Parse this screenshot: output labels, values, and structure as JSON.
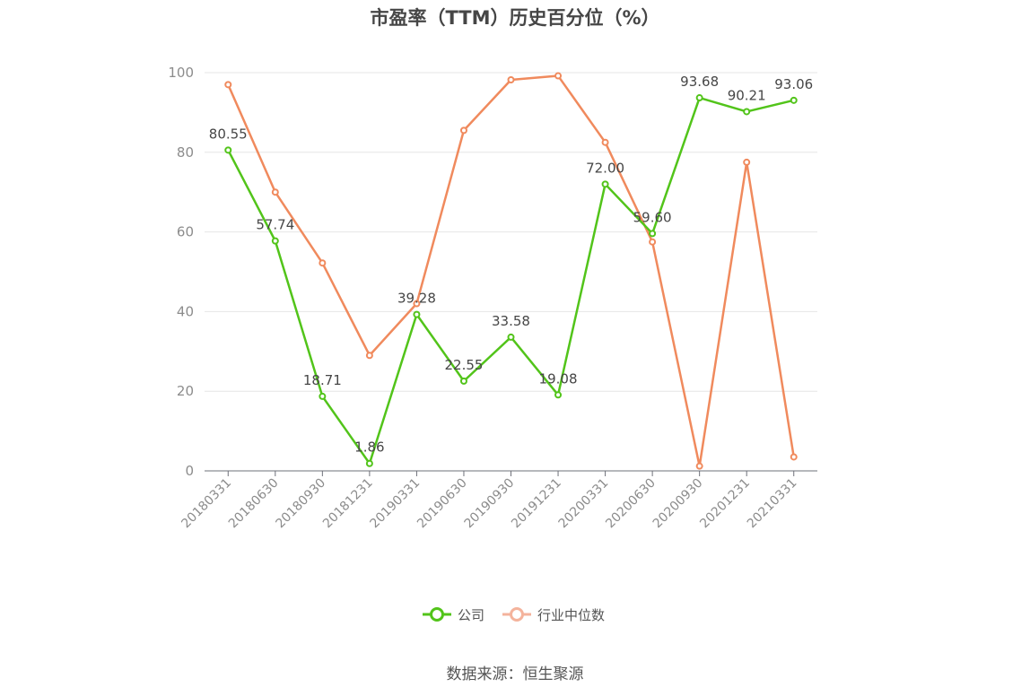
{
  "chart_data": {
    "type": "line",
    "title": "市盈率（TTM）历史百分位（%）",
    "categories": [
      "20180331",
      "20180630",
      "20180930",
      "20181231",
      "20190331",
      "20190630",
      "20190930",
      "20191231",
      "20200331",
      "20200630",
      "20200930",
      "20201231",
      "20210331"
    ],
    "ylim": [
      0,
      100
    ],
    "yticks": [
      0,
      20,
      40,
      60,
      80,
      100
    ],
    "grid": true,
    "legend_position": "bottom",
    "series": [
      {
        "name": "公司",
        "color": "#52c41a",
        "values": [
          80.55,
          57.74,
          18.71,
          1.86,
          39.28,
          22.55,
          33.58,
          19.08,
          72.0,
          59.6,
          93.68,
          90.21,
          93.06
        ],
        "labels": [
          "80.55",
          "57.74",
          "18.71",
          "1.86",
          "39.28",
          "22.55",
          "33.58",
          "19.08",
          "72.00",
          "59.60",
          "93.68",
          "90.21",
          "93.06"
        ]
      },
      {
        "name": "行业中位数",
        "color": "#f08a5d",
        "values": [
          97.0,
          70.0,
          52.2,
          29.0,
          42.0,
          85.5,
          98.2,
          99.2,
          82.5,
          57.5,
          1.2,
          77.5,
          3.5
        ]
      }
    ]
  },
  "legend": {
    "items": [
      {
        "label": "公司",
        "color": "#52c41a"
      },
      {
        "label": "行业中位数",
        "color": "#f4b39c"
      }
    ]
  },
  "source": "数据来源：恒生聚源"
}
